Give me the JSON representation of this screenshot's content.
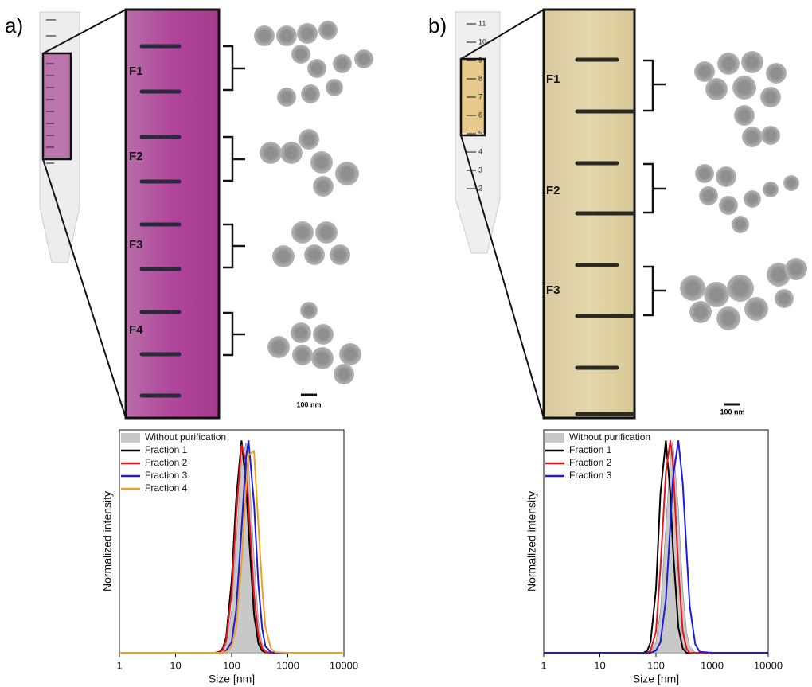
{
  "panels": {
    "a": {
      "label": "a)",
      "fractions": [
        "F1",
        "F2",
        "F3",
        "F4"
      ],
      "scale": "100 nm"
    },
    "b": {
      "label": "b)",
      "fractions": [
        "F1",
        "F2",
        "F3"
      ],
      "scale": "100 nm",
      "tube_scale": [
        "11",
        "10",
        "9",
        "8",
        "7",
        "6",
        "5",
        "4",
        "3",
        "2"
      ]
    }
  },
  "chart_data": [
    {
      "type": "line",
      "x_label": "Size [nm]",
      "y_label": "Normalized intensity",
      "log_x": true,
      "xlim": [
        1,
        10000
      ],
      "xticks": [
        1,
        10,
        100,
        1000,
        10000
      ],
      "ylim": [
        0,
        1.05
      ],
      "x": [
        1,
        10,
        40,
        50,
        60,
        70,
        80,
        100,
        120,
        150,
        180,
        200,
        250,
        300,
        350,
        400,
        500,
        600,
        1000,
        10000
      ],
      "series": [
        {
          "name": "Without purification",
          "color": "#c8c8c8",
          "fill": true,
          "values": [
            0,
            0,
            0,
            0,
            0.001,
            0.01,
            0.04,
            0.2,
            0.52,
            0.9,
            0.99,
            0.9,
            0.45,
            0.15,
            0.04,
            0.01,
            0,
            0,
            0,
            0
          ]
        },
        {
          "name": "Fraction 1",
          "color": "#000000",
          "values": [
            0,
            0,
            0,
            0,
            0.004,
            0.022,
            0.075,
            0.34,
            0.72,
            1,
            0.8,
            0.58,
            0.18,
            0.043,
            0.009,
            0.002,
            0,
            0,
            0,
            0
          ]
        },
        {
          "name": "Fraction 2",
          "color": "#e8141b",
          "values": [
            0,
            0,
            0,
            0,
            0.002,
            0.015,
            0.06,
            0.28,
            0.64,
            0.98,
            0.9,
            0.7,
            0.27,
            0.08,
            0.02,
            0.005,
            0,
            0,
            0,
            0
          ]
        },
        {
          "name": "Fraction 3",
          "color": "#1a1ae0",
          "values": [
            0,
            0,
            0,
            0,
            0,
            0,
            0.01,
            0.05,
            0.2,
            0.58,
            0.92,
            1,
            0.7,
            0.32,
            0.11,
            0.03,
            0.003,
            0,
            0,
            0
          ]
        },
        {
          "name": "Fraction 4",
          "color": "#f0a020",
          "values": [
            0,
            0,
            0,
            0,
            0,
            0,
            0.005,
            0.03,
            0.12,
            0.42,
            0.78,
            0.93,
            0.95,
            0.6,
            0.3,
            0.12,
            0.02,
            0.003,
            0,
            0
          ]
        }
      ]
    },
    {
      "type": "line",
      "x_label": "Size [nm]",
      "y_label": "Normalized intensity",
      "log_x": true,
      "xlim": [
        1,
        10000
      ],
      "xticks": [
        1,
        10,
        100,
        1000,
        10000
      ],
      "ylim": [
        0,
        1.05
      ],
      "x": [
        1,
        10,
        40,
        50,
        60,
        70,
        80,
        100,
        120,
        150,
        180,
        200,
        250,
        300,
        350,
        400,
        500,
        600,
        1000,
        10000
      ],
      "series": [
        {
          "name": "Without purification",
          "color": "#c8c8c8",
          "fill": true,
          "values": [
            0,
            0,
            0,
            0,
            0,
            0,
            0.005,
            0.05,
            0.2,
            0.6,
            0.92,
            1,
            0.68,
            0.3,
            0.1,
            0.03,
            0,
            0,
            0,
            0
          ]
        },
        {
          "name": "Fraction 1",
          "color": "#000000",
          "values": [
            0,
            0,
            0,
            0,
            0,
            0.01,
            0.05,
            0.3,
            0.75,
            1,
            0.75,
            0.5,
            0.12,
            0.02,
            0,
            0,
            0,
            0,
            0,
            0
          ]
        },
        {
          "name": "Fraction 2",
          "color": "#e8141b",
          "values": [
            0,
            0,
            0,
            0,
            0,
            0,
            0.01,
            0.1,
            0.4,
            0.85,
            1,
            0.9,
            0.4,
            0.1,
            0.02,
            0,
            0,
            0,
            0,
            0
          ]
        },
        {
          "name": "Fraction 3",
          "color": "#1a1ae0",
          "values": [
            0,
            0,
            0,
            0,
            0,
            0,
            0,
            0.01,
            0.05,
            0.25,
            0.6,
            0.82,
            1,
            0.8,
            0.48,
            0.22,
            0.04,
            0.005,
            0,
            0
          ]
        }
      ]
    }
  ]
}
